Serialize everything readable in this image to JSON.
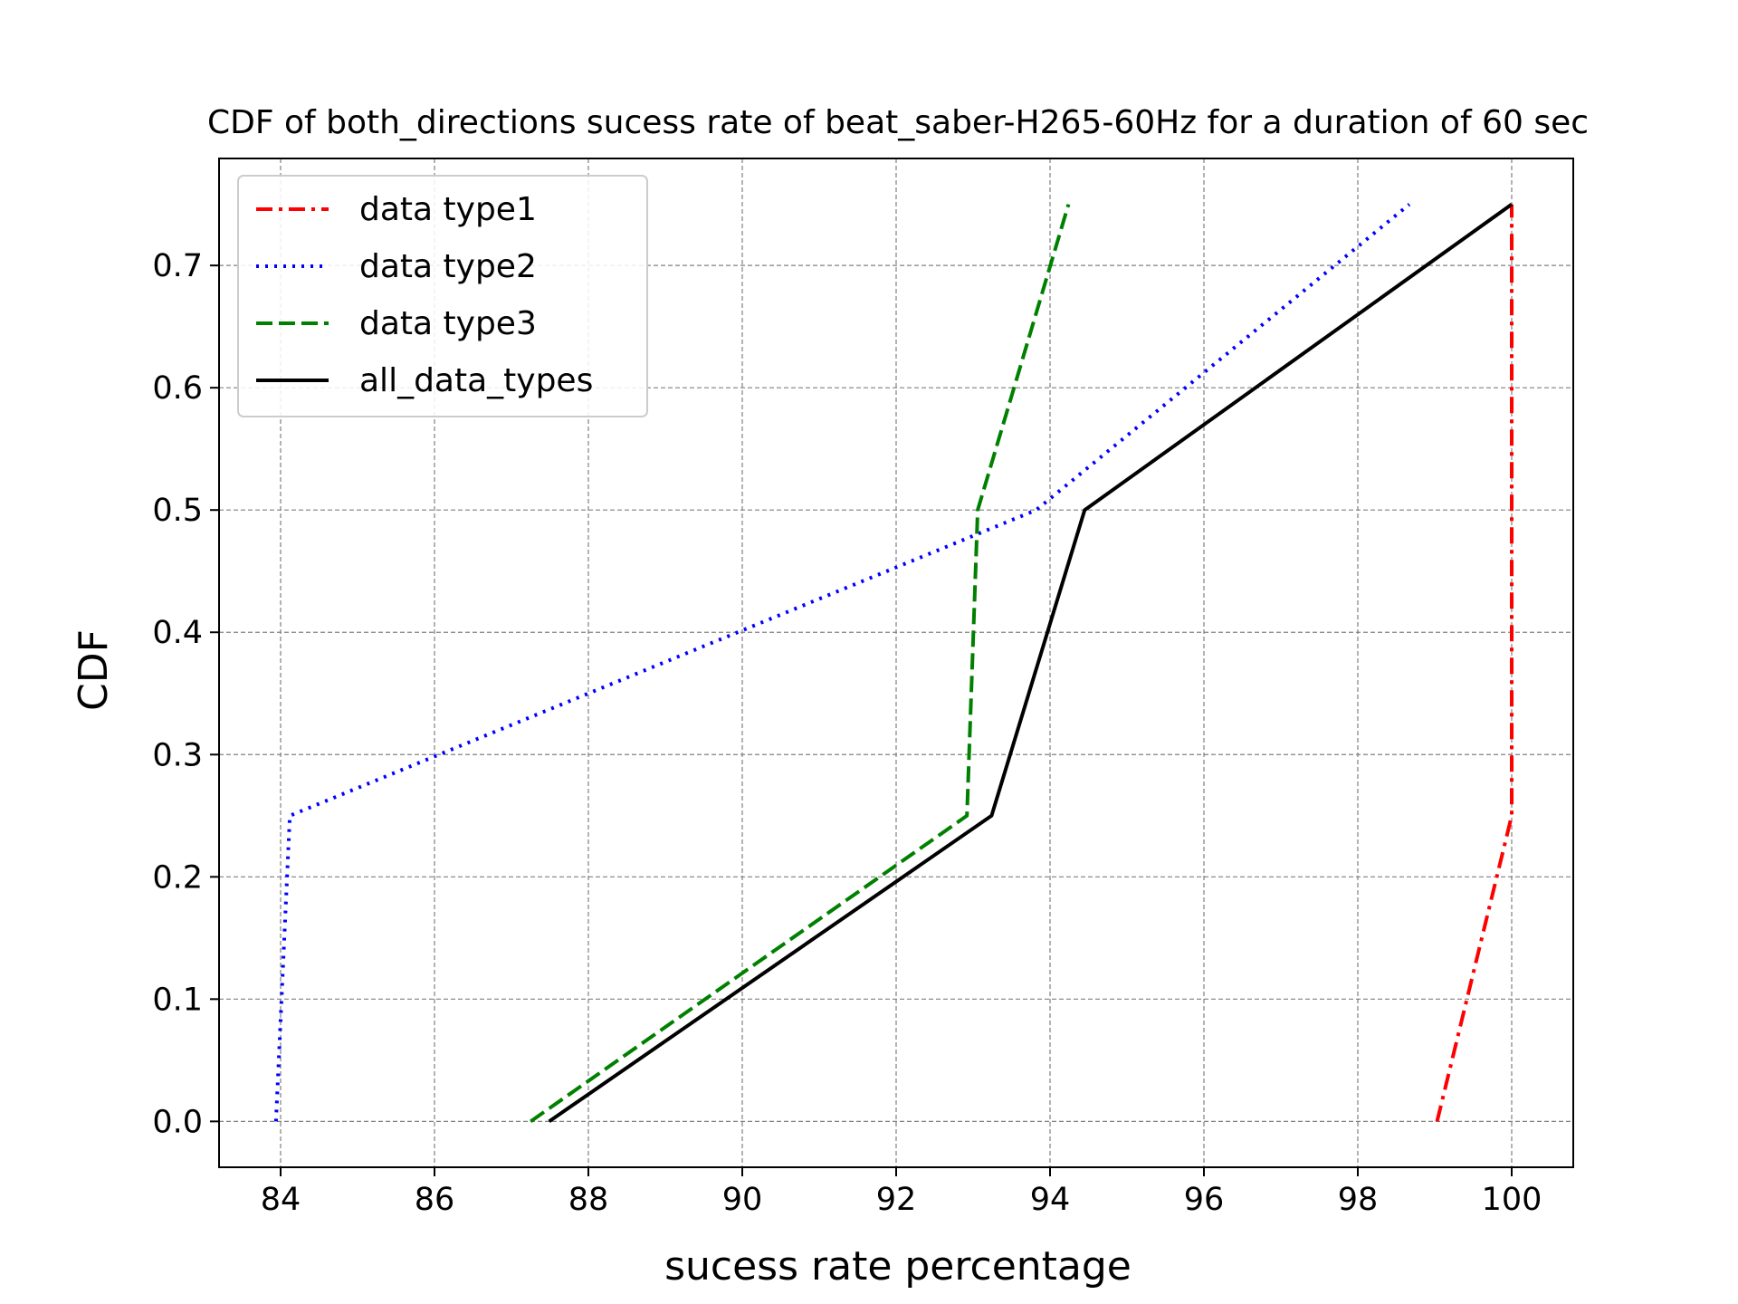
{
  "chart_data": {
    "type": "line",
    "title": "CDF of both_directions sucess rate of beat_saber-H265-60Hz for a duration of 60 sec",
    "xlabel": "sucess rate percentage",
    "ylabel": "CDF",
    "xlim": [
      83.2,
      100.8
    ],
    "ylim": [
      -0.0375,
      0.7875
    ],
    "xticks": [
      84,
      86,
      88,
      90,
      92,
      94,
      96,
      98,
      100
    ],
    "yticks": [
      0.0,
      0.1,
      0.2,
      0.3,
      0.4,
      0.5,
      0.6,
      0.7
    ],
    "xtick_labels": [
      "84",
      "86",
      "88",
      "90",
      "92",
      "94",
      "96",
      "98",
      "100"
    ],
    "ytick_labels": [
      "0.0",
      "0.1",
      "0.2",
      "0.3",
      "0.4",
      "0.5",
      "0.6",
      "0.7"
    ],
    "grid": true,
    "legend_position": "top-left",
    "series": [
      {
        "name": "data type1",
        "color": "#ff0000",
        "style": "dashdot",
        "x": [
          99.03,
          100.0,
          100.0,
          100.0
        ],
        "y": [
          0.0,
          0.25,
          0.5,
          0.75
        ]
      },
      {
        "name": "data type2",
        "color": "#0000ff",
        "style": "dotted",
        "x": [
          83.94,
          84.12,
          93.82,
          98.67
        ],
        "y": [
          0.0,
          0.25,
          0.5,
          0.75
        ]
      },
      {
        "name": "data type3",
        "color": "#008000",
        "style": "dashed",
        "x": [
          87.25,
          92.92,
          93.06,
          94.24
        ],
        "y": [
          0.0,
          0.25,
          0.5,
          0.75
        ]
      },
      {
        "name": "all_data_types",
        "color": "#000000",
        "style": "solid",
        "x": [
          87.49,
          93.24,
          94.45,
          100.0
        ],
        "y": [
          0.0,
          0.25,
          0.5,
          0.75
        ]
      }
    ]
  }
}
